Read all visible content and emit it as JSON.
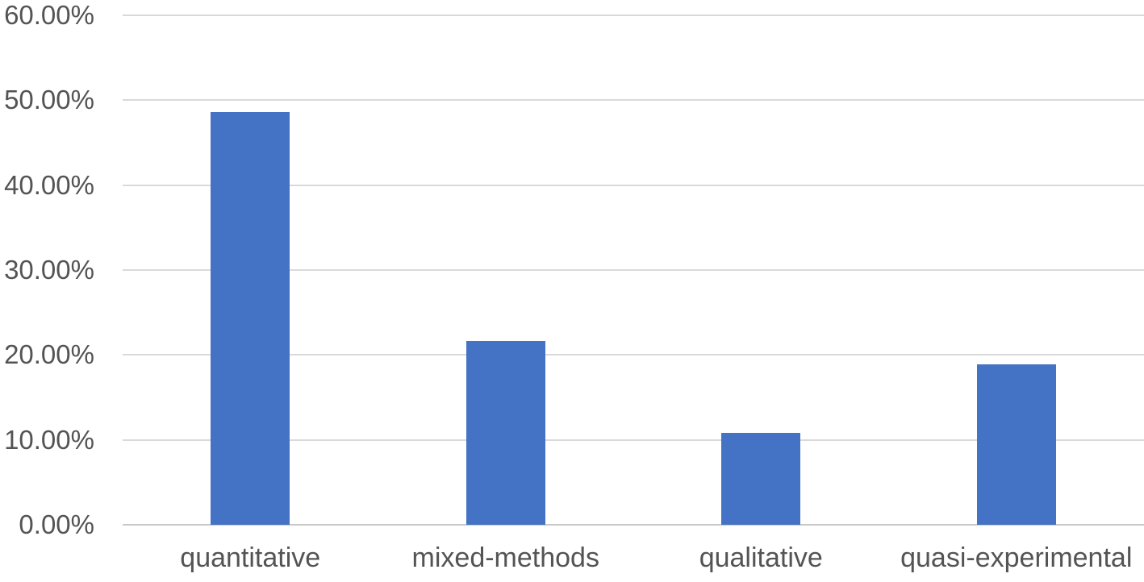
{
  "chart_data": {
    "type": "bar",
    "title": "",
    "xlabel": "",
    "ylabel": "",
    "categories": [
      "quantitative",
      "mixed-methods",
      "qualitative",
      "quasi-experimental"
    ],
    "values": [
      48.65,
      21.62,
      10.81,
      18.92
    ],
    "value_unit": "%",
    "ylim": [
      0,
      60
    ],
    "yticks": [
      {
        "value": 0,
        "label": "0.00%"
      },
      {
        "value": 10,
        "label": "10.00%"
      },
      {
        "value": 20,
        "label": "20.00%"
      },
      {
        "value": 30,
        "label": "30.00%"
      },
      {
        "value": 40,
        "label": "40.00%"
      },
      {
        "value": 50,
        "label": "50.00%"
      },
      {
        "value": 60,
        "label": "60.00%"
      }
    ],
    "grid": true,
    "legend_position": "none",
    "colors": {
      "bar": "#4472C4",
      "gridline": "#D9D9D9",
      "axis_line": "#C9C9C9",
      "label_text": "#545454"
    }
  }
}
